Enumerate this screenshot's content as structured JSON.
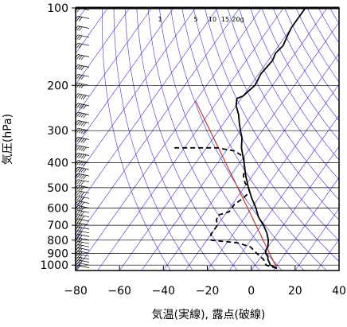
{
  "chart_data": {
    "type": "line",
    "title": "",
    "xlabel": "気温(実線), 露点(破線)",
    "ylabel": "気圧(hPa)",
    "xlim": [
      -80,
      40
    ],
    "ylim_pressure": [
      1050,
      100
    ],
    "y_scale": "log",
    "x_ticks": [
      -80,
      -60,
      -40,
      -20,
      0,
      20,
      40
    ],
    "x_tick_labels": [
      "−80",
      "−60",
      "−40",
      "−20",
      "0",
      "20",
      "40"
    ],
    "y_ticks": [
      100,
      200,
      300,
      400,
      500,
      600,
      700,
      800,
      900,
      1000
    ],
    "y_tick_labels": [
      "100",
      "200",
      "300",
      "400",
      "500",
      "600",
      "700",
      "800",
      "900",
      "1000"
    ],
    "grid": true,
    "mixing_ratio_labels": [
      "1",
      "5",
      "10",
      "15",
      "20g"
    ],
    "colors": {
      "isotherm": "#3333cc",
      "dry_adiabat": "#3333cc",
      "isobar": "#000000",
      "temperature": "#000000",
      "dewpoint": "#000000",
      "reference": "#cc2222",
      "wind_barb": "#000000"
    },
    "series": [
      {
        "name": "",
        "style": "solid",
        "points": [
          [
            1030,
            11
          ],
          [
            1000,
            7
          ],
          [
            950,
            4
          ],
          [
            925,
            3
          ],
          [
            900,
            1
          ],
          [
            870,
            0
          ],
          [
            850,
            0
          ],
          [
            800,
            -2
          ],
          [
            750,
            -5
          ],
          [
            700,
            -9
          ],
          [
            650,
            -14
          ],
          [
            600,
            -18
          ],
          [
            550,
            -23
          ],
          [
            500,
            -28
          ],
          [
            450,
            -33
          ],
          [
            400,
            -38
          ],
          [
            350,
            -44
          ],
          [
            320,
            -47
          ],
          [
            300,
            -50
          ],
          [
            280,
            -53
          ],
          [
            260,
            -56
          ],
          [
            240,
            -60
          ],
          [
            225,
            -62
          ],
          [
            220,
            -60
          ],
          [
            210,
            -59
          ],
          [
            200,
            -58
          ],
          [
            180,
            -59
          ],
          [
            160,
            -58
          ],
          [
            150,
            -59
          ],
          [
            140,
            -58
          ],
          [
            130,
            -59
          ],
          [
            120,
            -60
          ],
          [
            110,
            -60
          ],
          [
            100,
            -60
          ]
        ]
      },
      {
        "name": "",
        "style": "dashed",
        "points": [
          [
            1030,
            11
          ],
          [
            1000,
            5
          ],
          [
            950,
            2
          ],
          [
            900,
            -3
          ],
          [
            880,
            -5
          ],
          [
            850,
            -8
          ],
          [
            820,
            -15
          ],
          [
            800,
            -28
          ],
          [
            760,
            -30
          ],
          [
            730,
            -30
          ],
          [
            700,
            -30
          ],
          [
            670,
            -32
          ],
          [
            640,
            -33
          ],
          [
            620,
            -29
          ],
          [
            580,
            -29
          ],
          [
            550,
            -27
          ],
          [
            520,
            -26
          ],
          [
            500,
            -28
          ],
          [
            480,
            -31
          ],
          [
            450,
            -34
          ],
          [
            420,
            -36
          ],
          [
            400,
            -38
          ],
          [
            380,
            -40
          ],
          [
            360,
            -46
          ],
          [
            350,
            -55
          ],
          [
            350,
            -75
          ]
        ]
      }
    ],
    "reference_line": [
      [
        1030,
        11
      ],
      [
        230,
        -80
      ]
    ],
    "wind_barbs": [
      {
        "p": 1025,
        "speed": 15
      },
      {
        "p": 1000,
        "speed": 20
      },
      {
        "p": 975,
        "speed": 25
      },
      {
        "p": 950,
        "speed": 25
      },
      {
        "p": 925,
        "speed": 30
      },
      {
        "p": 900,
        "speed": 30
      },
      {
        "p": 875,
        "speed": 25
      },
      {
        "p": 850,
        "speed": 25
      },
      {
        "p": 825,
        "speed": 30
      },
      {
        "p": 800,
        "speed": 30
      },
      {
        "p": 775,
        "speed": 25
      },
      {
        "p": 750,
        "speed": 25
      },
      {
        "p": 725,
        "speed": 30
      },
      {
        "p": 700,
        "speed": 30
      },
      {
        "p": 675,
        "speed": 30
      },
      {
        "p": 650,
        "speed": 35
      },
      {
        "p": 625,
        "speed": 35
      },
      {
        "p": 600,
        "speed": 35
      },
      {
        "p": 575,
        "speed": 35
      },
      {
        "p": 550,
        "speed": 40
      },
      {
        "p": 525,
        "speed": 40
      },
      {
        "p": 500,
        "speed": 40
      },
      {
        "p": 475,
        "speed": 40
      },
      {
        "p": 450,
        "speed": 45
      },
      {
        "p": 425,
        "speed": 45
      },
      {
        "p": 400,
        "speed": 45
      },
      {
        "p": 375,
        "speed": 45
      },
      {
        "p": 350,
        "speed": 50
      },
      {
        "p": 325,
        "speed": 50
      },
      {
        "p": 300,
        "speed": 50
      },
      {
        "p": 280,
        "speed": 50
      },
      {
        "p": 260,
        "speed": 50
      },
      {
        "p": 240,
        "speed": 45
      },
      {
        "p": 220,
        "speed": 45
      },
      {
        "p": 200,
        "speed": 40
      },
      {
        "p": 185,
        "speed": 40
      },
      {
        "p": 170,
        "speed": 35
      },
      {
        "p": 155,
        "speed": 35
      },
      {
        "p": 140,
        "speed": 30
      },
      {
        "p": 130,
        "speed": 30
      },
      {
        "p": 120,
        "speed": 25
      },
      {
        "p": 110,
        "speed": 25
      },
      {
        "p": 102,
        "speed": 20
      }
    ]
  }
}
